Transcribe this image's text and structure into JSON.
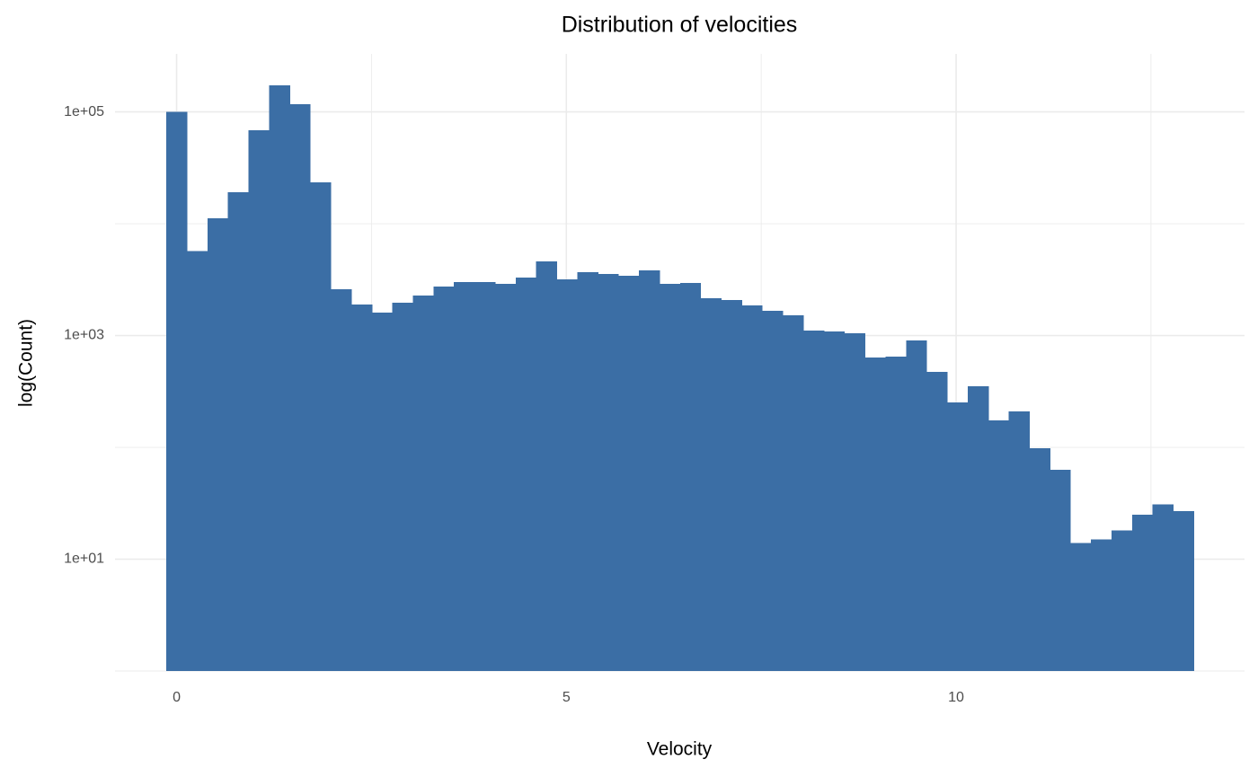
{
  "chart_data": {
    "type": "histogram",
    "title": "Distribution of velocities",
    "x_label": "Velocity",
    "y_label": "log(Count)",
    "bins": [
      -0.132,
      0.132,
      0.395,
      0.659,
      0.922,
      1.186,
      1.45,
      1.713,
      1.977,
      2.24,
      2.504,
      2.768,
      3.031,
      3.295,
      3.558,
      3.822,
      4.086,
      4.349,
      4.613,
      4.876,
      5.14,
      5.404,
      5.667,
      5.931,
      6.194,
      6.458,
      6.722,
      6.985,
      7.249,
      7.512,
      7.776,
      8.04,
      8.303,
      8.567,
      8.83,
      9.094,
      9.358,
      9.621,
      9.885,
      10.148,
      10.412,
      10.676,
      10.939,
      11.203,
      11.466,
      11.73,
      11.994,
      12.257,
      12.521,
      12.784,
      13.048
    ],
    "values": [
      100000,
      5700,
      11200,
      19100,
      68400,
      172600,
      117000,
      23400,
      2590,
      1890,
      1600,
      1960,
      2280,
      2740,
      3000,
      3000,
      2900,
      3300,
      4600,
      3180,
      3680,
      3550,
      3420,
      3820,
      2900,
      2950,
      2150,
      2080,
      1860,
      1660,
      1520,
      1110,
      1090,
      1050,
      636,
      648,
      903,
      473,
      252,
      352,
      174,
      210,
      98,
      63,
      14,
      15,
      18,
      25,
      31,
      27
    ],
    "color": "#3b6ea5",
    "xlim": [
      -0.79,
      13.7
    ],
    "xticks": [
      0,
      5,
      10
    ],
    "minor_xticks": [
      2.5,
      7.5,
      12.5
    ],
    "ylim": [
      1,
      330000
    ],
    "y_log": true,
    "yticks": [
      {
        "value": 10,
        "label": "1e+01"
      },
      {
        "value": 1000,
        "label": "1e+03"
      },
      {
        "value": 100000,
        "label": "1e+05"
      }
    ],
    "minor_yticks": [
      1,
      100,
      10000
    ],
    "grid": true
  }
}
